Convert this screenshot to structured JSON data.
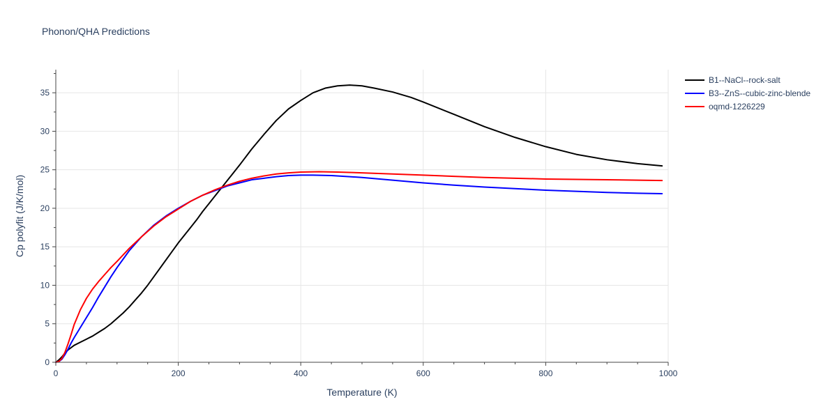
{
  "chart_data": {
    "type": "line",
    "title": "Phonon/QHA Predictions",
    "xlabel": "Temperature (K)",
    "ylabel": "Cp polyfit (J/K/mol)",
    "xlim": [
      0,
      1000
    ],
    "ylim": [
      0,
      38
    ],
    "xticks": [
      0,
      200,
      400,
      600,
      800,
      1000
    ],
    "xtick_labels": [
      "0",
      "200",
      "400",
      "600",
      "800",
      "1000"
    ],
    "yticks": [
      0,
      5,
      10,
      15,
      20,
      25,
      30,
      35
    ],
    "ytick_labels": [
      "0",
      "5",
      "10",
      "15",
      "20",
      "25",
      "30",
      "35"
    ],
    "grid": true,
    "legend_position": "top-right outside",
    "series": [
      {
        "name": "B1--NaCl--rock-salt",
        "color": "#000000",
        "x": [
          0,
          5,
          10,
          15,
          20,
          25,
          30,
          40,
          50,
          60,
          70,
          80,
          90,
          100,
          110,
          120,
          130,
          140,
          150,
          160,
          170,
          180,
          190,
          200,
          210,
          220,
          230,
          240,
          250,
          260,
          270,
          280,
          290,
          300,
          320,
          340,
          360,
          380,
          400,
          420,
          440,
          460,
          480,
          500,
          520,
          550,
          580,
          600,
          650,
          700,
          750,
          800,
          850,
          900,
          950,
          990
        ],
        "y": [
          0,
          0.3,
          0.7,
          1.2,
          1.6,
          1.9,
          2.2,
          2.6,
          3.0,
          3.4,
          3.9,
          4.4,
          5.0,
          5.7,
          6.4,
          7.2,
          8.1,
          9.0,
          10.0,
          11.1,
          12.2,
          13.3,
          14.4,
          15.5,
          16.5,
          17.5,
          18.5,
          19.6,
          20.6,
          21.6,
          22.6,
          23.6,
          24.6,
          25.6,
          27.7,
          29.6,
          31.4,
          32.9,
          34.0,
          35.0,
          35.6,
          35.9,
          36.0,
          35.9,
          35.6,
          35.1,
          34.4,
          33.8,
          32.2,
          30.6,
          29.2,
          28.0,
          27.0,
          26.3,
          25.8,
          25.5
        ]
      },
      {
        "name": "B3--ZnS--cubic-zinc-blende",
        "color": "#0000ff",
        "x": [
          0,
          5,
          10,
          15,
          20,
          25,
          30,
          40,
          50,
          60,
          70,
          80,
          90,
          100,
          120,
          140,
          160,
          180,
          200,
          220,
          240,
          260,
          280,
          300,
          320,
          340,
          360,
          380,
          400,
          420,
          450,
          480,
          500,
          550,
          600,
          650,
          700,
          750,
          800,
          850,
          900,
          950,
          990
        ],
        "y": [
          0,
          0.1,
          0.4,
          1.0,
          1.7,
          2.5,
          3.2,
          4.5,
          5.8,
          7.1,
          8.5,
          9.8,
          11.1,
          12.3,
          14.5,
          16.3,
          17.8,
          19.0,
          20.0,
          20.9,
          21.7,
          22.3,
          22.9,
          23.3,
          23.7,
          23.9,
          24.1,
          24.25,
          24.3,
          24.3,
          24.25,
          24.1,
          24.0,
          23.65,
          23.3,
          23.0,
          22.75,
          22.55,
          22.35,
          22.2,
          22.05,
          21.95,
          21.9
        ]
      },
      {
        "name": "oqmd-1226229",
        "color": "#ff0000",
        "x": [
          0,
          5,
          10,
          15,
          20,
          25,
          30,
          40,
          50,
          60,
          70,
          80,
          90,
          100,
          120,
          140,
          160,
          180,
          200,
          220,
          240,
          260,
          280,
          300,
          320,
          340,
          360,
          380,
          400,
          430,
          460,
          500,
          550,
          600,
          650,
          700,
          750,
          800,
          850,
          900,
          950,
          990
        ],
        "y": [
          0,
          0.1,
          0.5,
          1.3,
          2.4,
          3.6,
          4.9,
          6.8,
          8.3,
          9.5,
          10.5,
          11.4,
          12.3,
          13.1,
          14.8,
          16.3,
          17.7,
          18.9,
          19.9,
          20.9,
          21.7,
          22.4,
          23.0,
          23.5,
          23.9,
          24.2,
          24.45,
          24.6,
          24.7,
          24.75,
          24.7,
          24.6,
          24.45,
          24.3,
          24.15,
          24.0,
          23.9,
          23.8,
          23.75,
          23.7,
          23.65,
          23.6
        ]
      }
    ]
  }
}
